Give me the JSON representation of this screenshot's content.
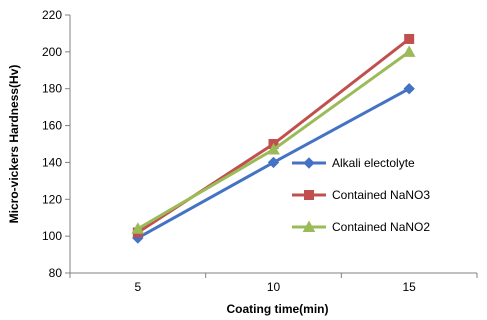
{
  "chart_data": {
    "type": "line",
    "title": "",
    "xlabel": "Coating time(min)",
    "ylabel": "Micro-vickers  Hardness(Hv)",
    "x": [
      5,
      10,
      15
    ],
    "x_tick_labels": [
      "5",
      "10",
      "15"
    ],
    "xlim": [
      2.5,
      17.5
    ],
    "ylim": [
      80,
      220
    ],
    "y_ticks": [
      80,
      100,
      120,
      140,
      160,
      180,
      200,
      220
    ],
    "grid": false,
    "legend_position": "right",
    "series": [
      {
        "name": "Alkali electolyte",
        "values": [
          99,
          140,
          180
        ],
        "color": "#4472C4",
        "marker": "diamond"
      },
      {
        "name": "Contained NaNO3",
        "values": [
          102,
          150,
          207
        ],
        "color": "#C0504D",
        "marker": "square"
      },
      {
        "name": "Contained NaNO2",
        "values": [
          104,
          147,
          200
        ],
        "color": "#9BBB59",
        "marker": "triangle"
      }
    ]
  }
}
